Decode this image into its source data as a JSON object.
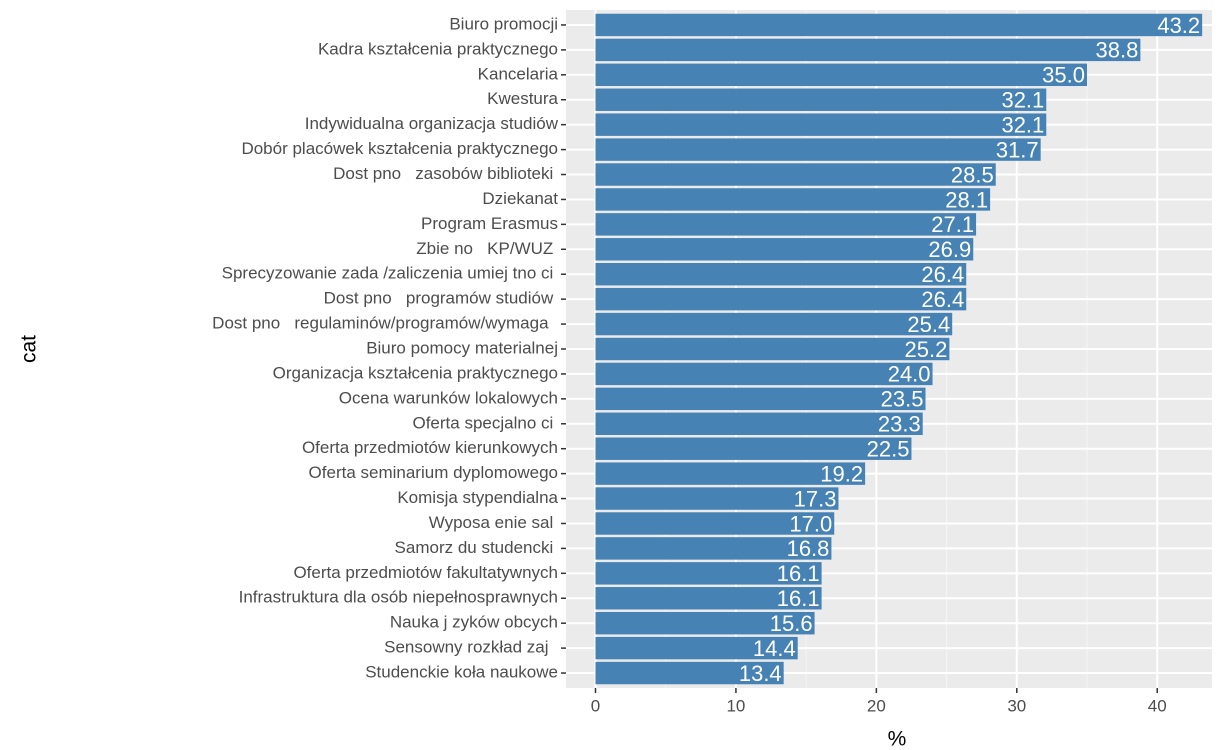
{
  "chart_data": {
    "type": "barh",
    "xlabel": "%",
    "ylabel": "cat",
    "categories": [
      "Biuro promocji",
      "Kadra kształcenia praktycznego",
      "Kancelaria",
      "Kwestura",
      "Indywidualna organizacja studiów",
      "Dobór placówek kształcenia praktycznego",
      "Dost pno   zasobów biblioteki ",
      "Dziekanat",
      "Program Erasmus",
      "Zbie no   KP/WUZ ",
      "Sprecyzowanie zada /zaliczenia umiej tno ci ",
      "Dost pno   programów studiów ",
      "Dost pno   regulaminów/programów/wymaga  ",
      "Biuro pomocy materialnej",
      "Organizacja kształcenia praktycznego",
      "Ocena warunków lokalowych",
      "Oferta specjalno ci ",
      "Oferta przedmiotów kierunkowych",
      "Oferta seminarium dyplomowego",
      "Komisja stypendialna",
      "Wyposa enie sal ",
      "Samorz du studencki ",
      "Oferta przedmiotów fakultatywnych",
      "Infrastruktura dla osób niepełnosprawnych",
      "Nauka j zyków obcych",
      "Sensowny rozkład zaj  ",
      "Studenckie koła naukowe"
    ],
    "values": [
      43.2,
      38.8,
      35.0,
      32.1,
      32.1,
      31.7,
      28.5,
      28.1,
      27.1,
      26.9,
      26.4,
      26.4,
      25.4,
      25.2,
      24.0,
      23.5,
      23.3,
      22.5,
      19.2,
      17.3,
      17.0,
      16.8,
      16.1,
      16.1,
      15.6,
      14.4,
      13.4
    ],
    "value_labels": [
      "43.2",
      "38.8",
      "35.0",
      "32.1",
      "32.1",
      "31.7",
      "28.5",
      "28.1",
      "27.1",
      "26.9",
      "26.4",
      "26.4",
      "25.4",
      "25.2",
      "24.0",
      "23.5",
      "23.3",
      "22.5",
      "19.2",
      "17.3",
      "17.0",
      "16.8",
      "16.1",
      "16.1",
      "15.6",
      "14.4",
      "13.4"
    ],
    "color": "#4682b4",
    "xlim": [
      -2.1,
      43.9
    ],
    "xticks": [
      0,
      10,
      20,
      30,
      40
    ],
    "minor_xticks": [
      5,
      15,
      25,
      35
    ],
    "grid": true
  }
}
